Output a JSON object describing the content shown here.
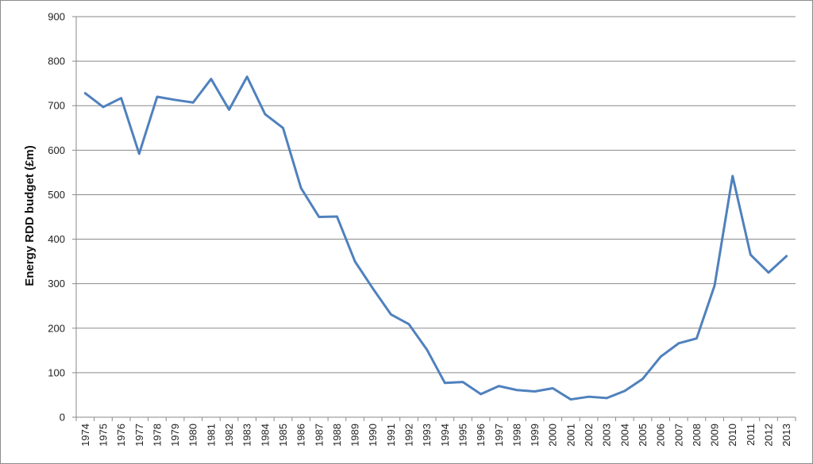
{
  "chart_data": {
    "type": "line",
    "title": "",
    "xlabel": "",
    "ylabel": "Energy RDD budget (£m)",
    "ylim": [
      0,
      900
    ],
    "yticks": [
      0,
      100,
      200,
      300,
      400,
      500,
      600,
      700,
      800,
      900
    ],
    "grid": true,
    "legend": "none",
    "line_color": "#4f81bd",
    "categories": [
      "1974",
      "1975",
      "1976",
      "1977",
      "1978",
      "1979",
      "1980",
      "1981",
      "1982",
      "1983",
      "1984",
      "1985",
      "1986",
      "1987",
      "1988",
      "1989",
      "1990",
      "1991",
      "1992",
      "1993",
      "1994",
      "1995",
      "1996",
      "1997",
      "1998",
      "1999",
      "2000",
      "2001",
      "2002",
      "2003",
      "2004",
      "2005",
      "2006",
      "2007",
      "2008",
      "2009",
      "2010",
      "2011",
      "2012",
      "2013"
    ],
    "series": [
      {
        "values": [
          728,
          697,
          717,
          592,
          720,
          713,
          707,
          760,
          691,
          765,
          681,
          650,
          515,
          450,
          451,
          350,
          289,
          231,
          209,
          152,
          77,
          79,
          52,
          70,
          61,
          58,
          65,
          40,
          46,
          43,
          59,
          86,
          136,
          166,
          177,
          296,
          542,
          365,
          325,
          362
        ]
      }
    ]
  }
}
